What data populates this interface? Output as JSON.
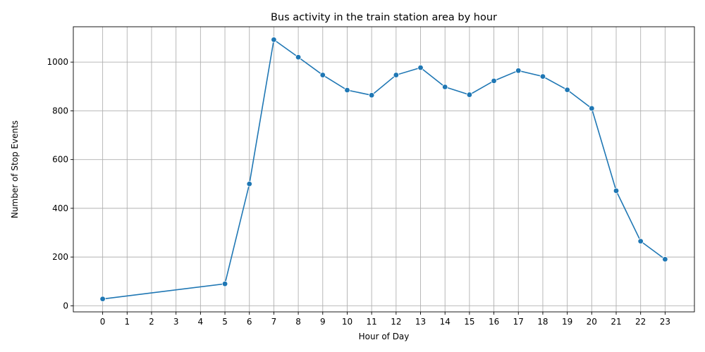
{
  "chart_data": {
    "type": "line",
    "title": "Bus activity in the train station area by hour",
    "xlabel": "Hour of Day",
    "ylabel": "Number of Stop Events",
    "x_ticks": [
      0,
      1,
      2,
      3,
      4,
      5,
      6,
      7,
      8,
      9,
      10,
      11,
      12,
      13,
      14,
      15,
      16,
      17,
      18,
      19,
      20,
      21,
      22,
      23
    ],
    "y_ticks": [
      0,
      200,
      400,
      600,
      800,
      1000
    ],
    "xlim": [
      -1.2,
      24.2
    ],
    "ylim": [
      -25,
      1145
    ],
    "grid": true,
    "series": [
      {
        "color": "#1f77b4",
        "x": [
          0,
          5,
          6,
          7,
          8,
          9,
          10,
          11,
          12,
          13,
          14,
          15,
          16,
          17,
          18,
          19,
          20,
          21,
          22,
          23
        ],
        "y": [
          28,
          90,
          500,
          1092,
          1020,
          947,
          885,
          864,
          947,
          977,
          898,
          866,
          923,
          965,
          941,
          886,
          810,
          472,
          265,
          191
        ]
      }
    ]
  }
}
